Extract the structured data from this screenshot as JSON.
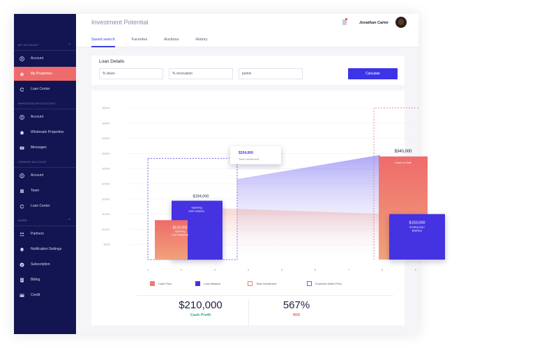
{
  "sidebar": {
    "sections": [
      {
        "title": "MY ACCOUNT",
        "items": [
          {
            "label": "Account",
            "icon": "user-icon",
            "active": false
          },
          {
            "label": "My Properties",
            "icon": "home-icon",
            "active": true
          },
          {
            "label": "Loan Center",
            "icon": "refresh-icon",
            "active": false
          }
        ]
      },
      {
        "title": "WHOLESALER ACCOUNT",
        "items": [
          {
            "label": "Account",
            "icon": "user-icon",
            "active": false
          },
          {
            "label": "Wholesale Properties",
            "icon": "home-icon",
            "active": false
          },
          {
            "label": "Messages",
            "icon": "inbox-icon",
            "active": false
          }
        ]
      },
      {
        "title": "LENDER ACCOUNT",
        "items": [
          {
            "label": "Account",
            "icon": "user-icon",
            "active": false
          },
          {
            "label": "Team",
            "icon": "team-icon",
            "active": false
          },
          {
            "label": "Loan Center",
            "icon": "refresh-icon",
            "active": false
          }
        ]
      },
      {
        "title": "MORE",
        "items": [
          {
            "label": "Partners",
            "icon": "partners-icon",
            "active": false
          },
          {
            "label": "Notification Settings",
            "icon": "bell-icon",
            "active": false
          },
          {
            "label": "Subscription",
            "icon": "check-circle-icon",
            "active": false
          },
          {
            "label": "Billing",
            "icon": "billing-icon",
            "active": false
          },
          {
            "label": "Credit",
            "icon": "credit-card-icon",
            "active": false
          }
        ]
      }
    ]
  },
  "header": {
    "title": "Investment Potential",
    "tabs": [
      "Saved search",
      "Favorites",
      "Auctions",
      "History"
    ],
    "active_tab": 0,
    "username": "Jonathan Carter"
  },
  "loan": {
    "title": "Loan Details",
    "fields": [
      {
        "placeholder": "% down"
      },
      {
        "placeholder": "% renovation"
      },
      {
        "placeholder": "points"
      }
    ],
    "calculate_label": "Calculate"
  },
  "chart_data": {
    "type": "bar",
    "y_ticks": [
      "$500K",
      "$450K",
      "$400K",
      "$350K",
      "$300K",
      "$250K",
      "$200K",
      "$150K",
      "$100K",
      "$50K"
    ],
    "x_ticks": [
      "1",
      "2",
      "3",
      "4",
      "5",
      "6",
      "7",
      "8",
      "9"
    ],
    "ylim": [
      0,
      500000
    ],
    "bars": [
      {
        "series": "Cash Flow",
        "x": 2,
        "value": 130000,
        "value_label": "$130,000",
        "sub_label": "Opening Loan Balance"
      },
      {
        "series": "Loan Balance",
        "x": 3,
        "value": 194000,
        "value_label": "$194,000",
        "sub_label": "Opening loan balance"
      },
      {
        "series": "Cash Flow",
        "x": 9,
        "value": 340000,
        "value_label": "$340,000",
        "sub_label": "Cash on Sale"
      },
      {
        "series": "Loan Balance",
        "x": 9.3,
        "value": 150000,
        "value_label": "$150,000",
        "sub_label": "Ending loan Balance"
      }
    ],
    "total_investment": {
      "from_x": 1,
      "to_x": 4,
      "value": 334000,
      "value_label": "$334,000",
      "label": "Total Investment"
    },
    "expected_sales_price": {
      "from_x": 8,
      "value": 500000
    },
    "legend": [
      "Cash Flow",
      "Loan Balance",
      "Total Investment",
      "Expected Sales Price"
    ],
    "colors": {
      "cash_flow_start": "#ef6b6b",
      "cash_flow_end": "#f0a27a",
      "loan_balance": "#4432e0",
      "total_investment": "#4432e0",
      "expected_sales": "#ef6b6b"
    }
  },
  "summary": {
    "cash_profit_value": "$210,000",
    "cash_profit_label": "Cash Profit",
    "roi_value": "567%",
    "roi_label": "ROI"
  }
}
